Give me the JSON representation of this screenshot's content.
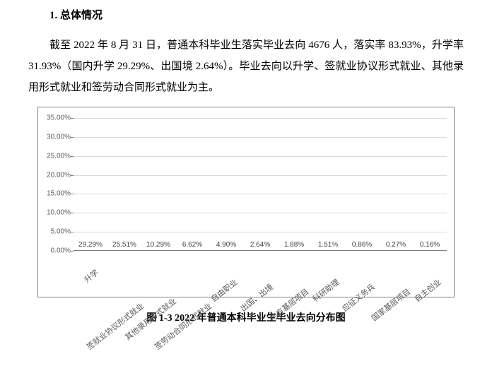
{
  "heading": "1.  总体情况",
  "paragraph": "截至 2022 年 8 月 31 日，普通本科毕业生落实毕业去向 4676 人，落实率 83.93%，升学率 31.93%（国内升学 29.29%、出国境 2.64%）。毕业去向以升学、签就业协议形式就业、其他录用形式就业和签劳动合同形式就业为主。",
  "caption": "图 1-3  2022 年普通本科毕业生毕业去向分布图",
  "chart": {
    "type": "bar",
    "ymax": 35,
    "ytick_step": 5,
    "ytick_labels": [
      "0.00%",
      "5.00%",
      "10.00%",
      "15.00%",
      "20.00%",
      "25.00%",
      "30.00%",
      "35.00%"
    ],
    "bar_color": "#4472c4",
    "grid_color": "#d9d9d9",
    "axis_color": "#808080",
    "background": "#ffffff",
    "label_color": "#595959",
    "value_label_color": "#404040",
    "label_fontsize": 10,
    "categories": [
      "升学",
      "签就业协议形式就业",
      "其他录用形式就业",
      "签劳动合同形式就业",
      "自由职业",
      "出国、出境",
      "地方基层项目",
      "科研助理",
      "应征义务兵",
      "国家基层项目",
      "自主创业"
    ],
    "values": [
      29.29,
      25.51,
      10.29,
      6.62,
      4.9,
      2.64,
      1.88,
      1.51,
      0.86,
      0.27,
      0.16
    ],
    "value_labels": [
      "29.29%",
      "25.51%",
      "10.29%",
      "6.62%",
      "4.90%",
      "2.64%",
      "1.88%",
      "1.51%",
      "0.86%",
      "0.27%",
      "0.16%"
    ]
  }
}
